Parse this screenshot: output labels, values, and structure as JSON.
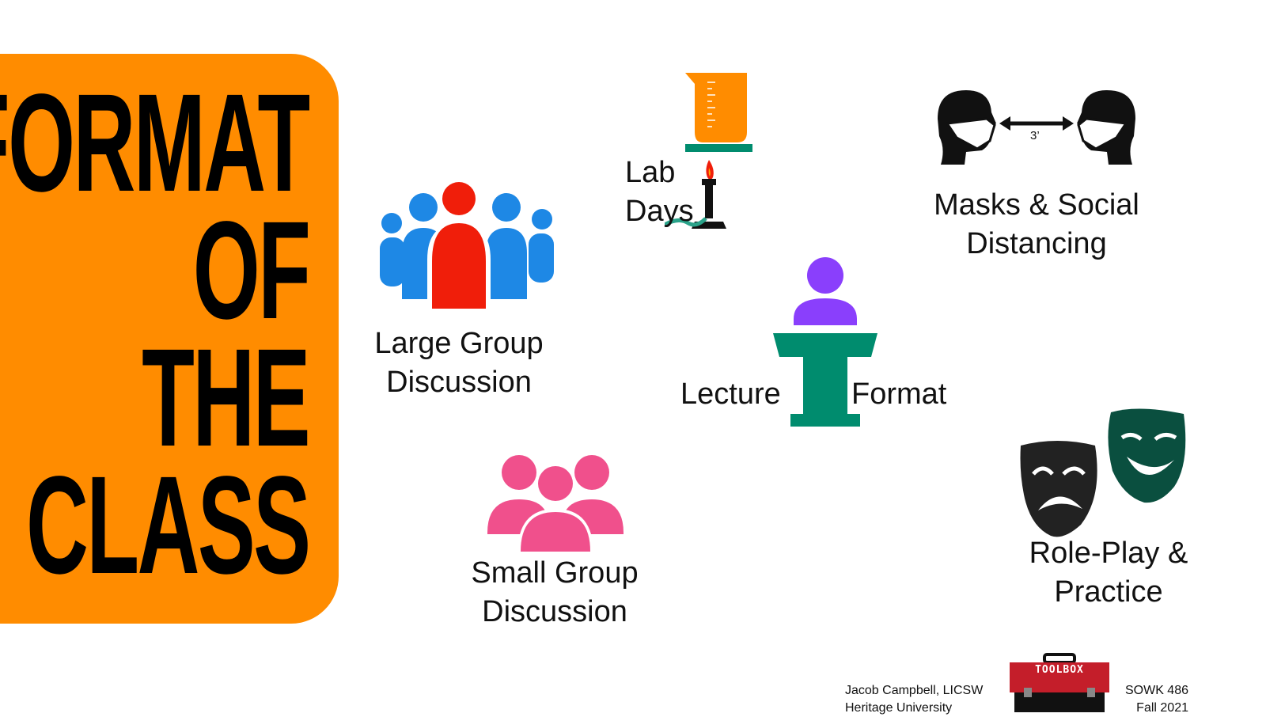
{
  "title": {
    "line1": "FORMAT",
    "line2": "OF",
    "line3": "THE",
    "line4": "CLASS"
  },
  "items": {
    "large_group": {
      "line1": "Large Group",
      "line2": "Discussion"
    },
    "lab_days": {
      "line1": "Lab",
      "line2": "Days"
    },
    "masks": {
      "line1": "Masks & Social",
      "line2": "Distancing",
      "distance": "3’"
    },
    "lecture": {
      "word1": "Lecture",
      "word2": "Format"
    },
    "small_group": {
      "line1": "Small Group",
      "line2": "Discussion"
    },
    "role_play": {
      "line1": "Role-Play &",
      "line2": "Practice"
    }
  },
  "footer": {
    "author": "Jacob Campbell, LICSW",
    "institution": "Heritage University",
    "toolbox_label": "TOOLBOX",
    "course": "SOWK 486",
    "term": "Fall 2021"
  },
  "colors": {
    "title_panel": "#FF8C00",
    "large_group_center": "#F01E0A",
    "large_group_side": "#1E88E5",
    "small_group": "#F0508C",
    "lecture_podium": "#008C6E",
    "lecture_person": "#8A3FFC",
    "comedy_mask": "#0A4F3F",
    "tragedy_mask": "#222222",
    "toolbox": "#C41E2A"
  },
  "icons": [
    "people-group-icon",
    "beaker-icon",
    "bunsen-burner-icon",
    "masked-heads-icon",
    "podium-icon",
    "small-group-icon",
    "theater-masks-icon",
    "toolbox-icon"
  ]
}
